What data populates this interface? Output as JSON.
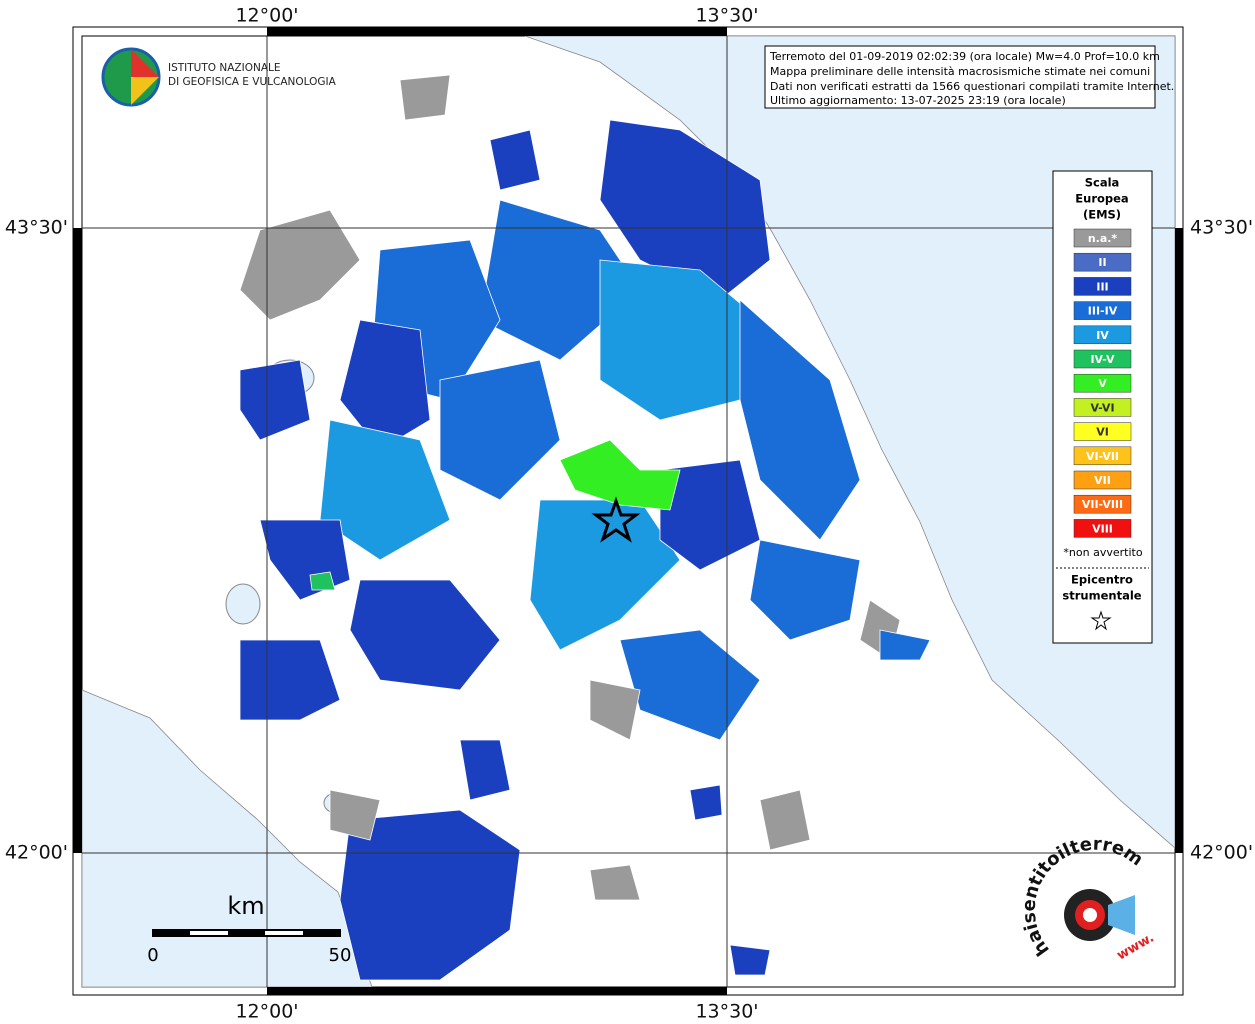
{
  "header": {
    "lines": [
      "Terremoto del 01-09-2019 02:02:39 (ora locale) Mw=4.0 Prof=10.0 km",
      "Mappa preliminare delle intensità macrosismiche stimate nei comuni",
      "Dati non verificati estratti da 1566 questionari compilati tramite Internet.",
      "Ultimo aggiornamento: 13-07-2025 23:19 (ora locale)"
    ]
  },
  "logo": {
    "lines": [
      "ISTITUTO NAZIONALE",
      "DI GEOFISICA E VULCANOLOGIA"
    ]
  },
  "axes": {
    "top": [
      "12°00'",
      "13°30'"
    ],
    "bottom": [
      "12°00'",
      "13°30'"
    ],
    "left": [
      "43°30'",
      "42°00'"
    ],
    "right": [
      "43°30'",
      "42°00'"
    ]
  },
  "legend": {
    "title": [
      "Scala",
      "Europea",
      "(EMS)"
    ],
    "items": [
      {
        "label": "n.a.*",
        "color": "#9a9a9a"
      },
      {
        "label": "II",
        "color": "#4a6cc4"
      },
      {
        "label": "III",
        "color": "#1a3fbf"
      },
      {
        "label": "III-IV",
        "color": "#1a6cd6"
      },
      {
        "label": "IV",
        "color": "#1b9ae2"
      },
      {
        "label": "IV-V",
        "color": "#1fc25e"
      },
      {
        "label": "V",
        "color": "#33ee22"
      },
      {
        "label": "V-VI",
        "color": "#c2f020"
      },
      {
        "label": "VI",
        "color": "#ffff22"
      },
      {
        "label": "VI-VII",
        "color": "#ffc21a"
      },
      {
        "label": "VII",
        "color": "#ffa012"
      },
      {
        "label": "VII-VIII",
        "color": "#ff6a12"
      },
      {
        "label": "VIII",
        "color": "#f01010"
      }
    ],
    "note": "*non avvertito",
    "epicenter": [
      "Epicentro",
      "strumentale"
    ]
  },
  "scale": {
    "unit": "km",
    "ticks": [
      "0",
      "50"
    ]
  },
  "watermark": {
    "site": "haisentitoilterremoto.it",
    "www": "www."
  }
}
